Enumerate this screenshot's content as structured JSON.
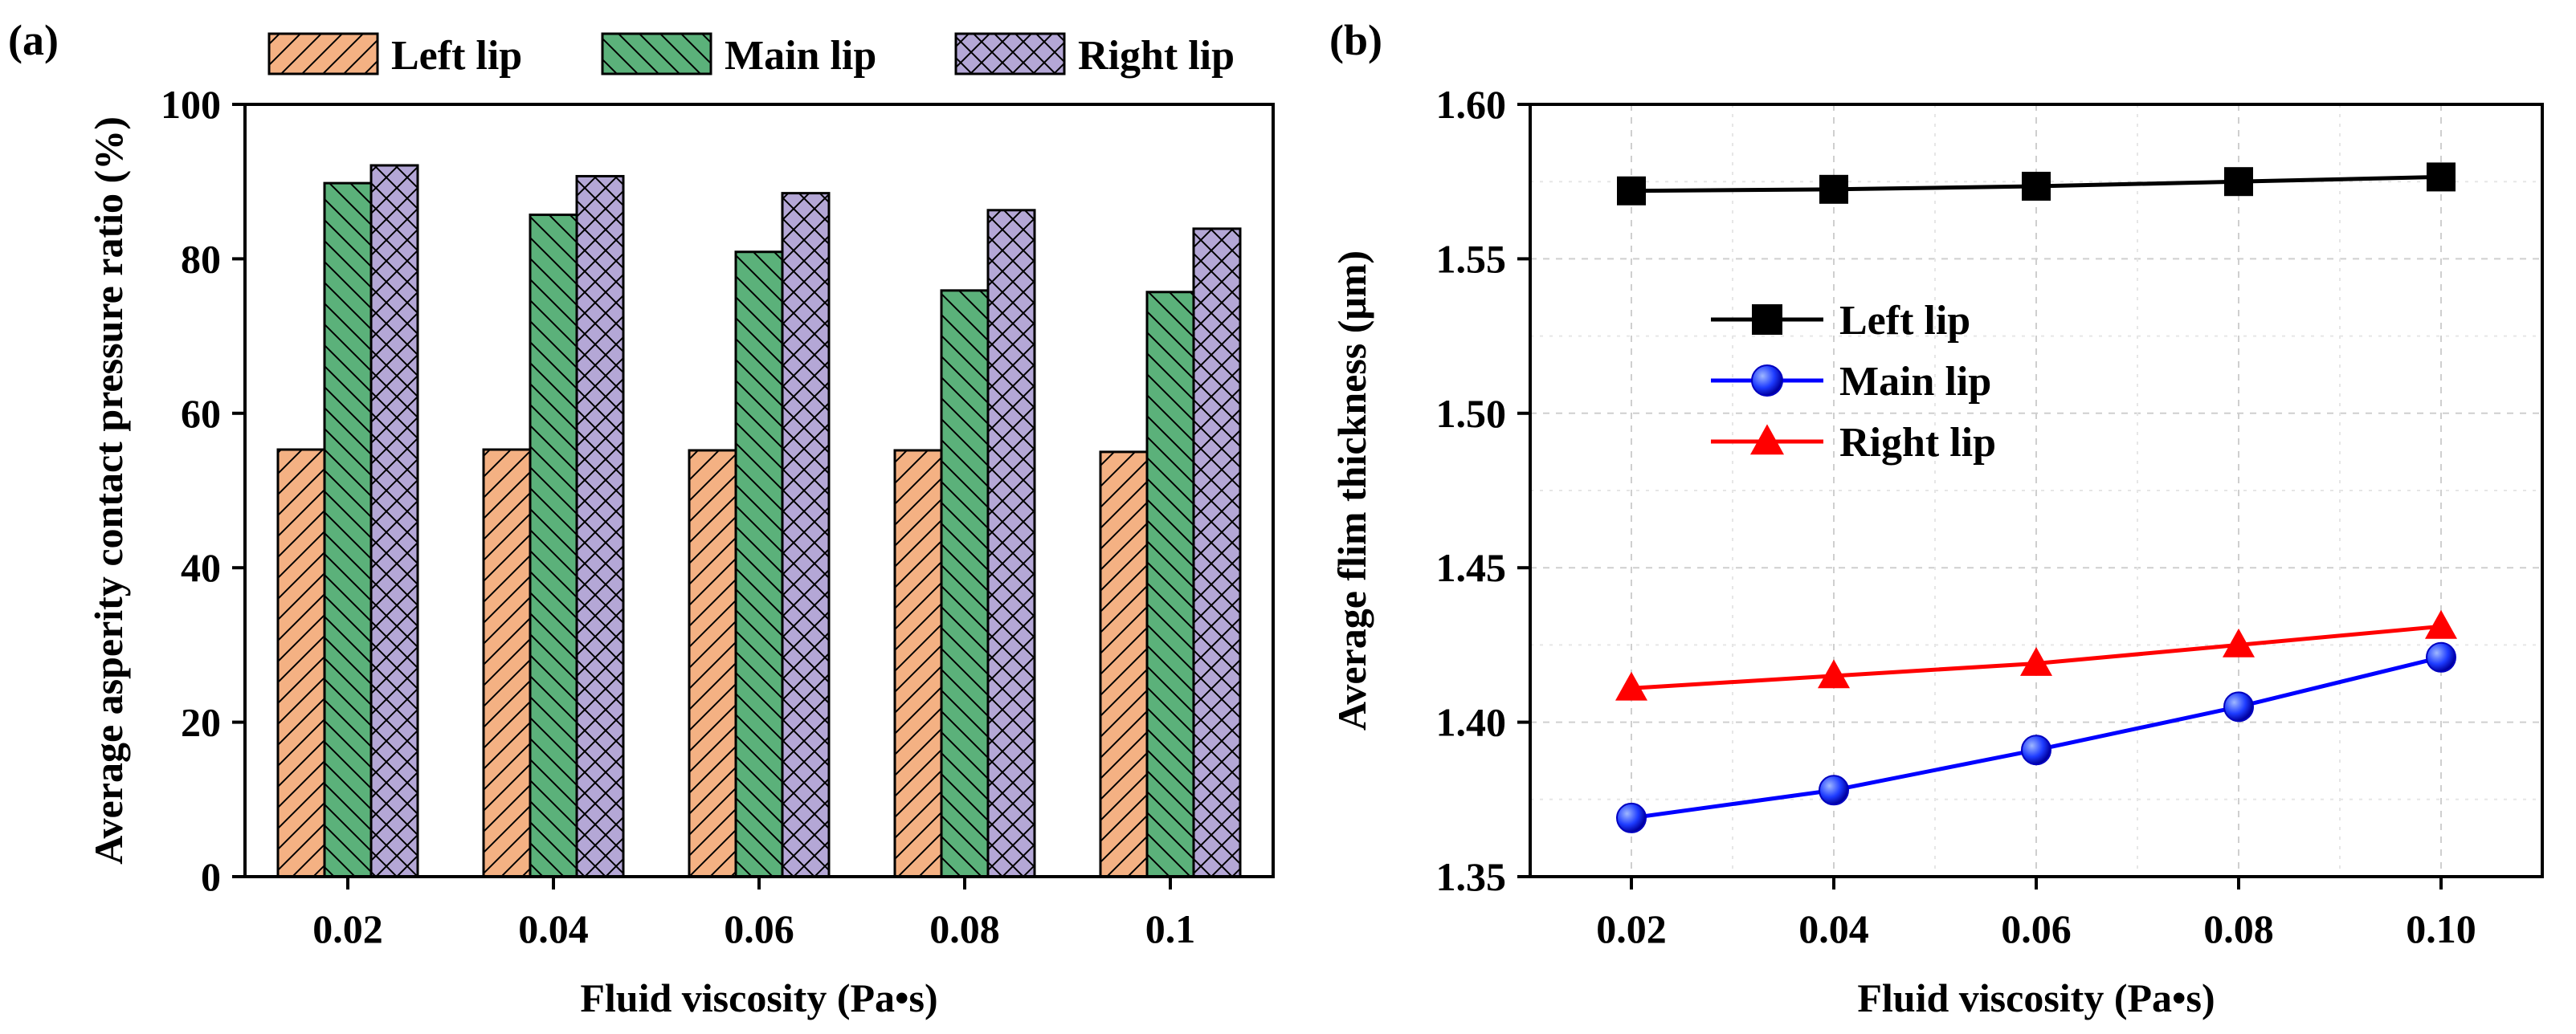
{
  "chart_data": [
    {
      "panel_label": "(a)",
      "type": "bar",
      "xlabel": "Fluid viscosity (Pa•s)",
      "ylabel": "Average asperity contact pressure ratio (%)",
      "categories": [
        "0.02",
        "0.04",
        "0.06",
        "0.08",
        "0.1"
      ],
      "ylim": [
        0,
        100
      ],
      "yticks": [
        "0",
        "20",
        "40",
        "60",
        "80",
        "100"
      ],
      "legend_position": "top",
      "series": [
        {
          "name": "Left lip",
          "color": "#F4B183",
          "pattern": "forward-diagonal",
          "values": [
            55.3,
            55.3,
            55.2,
            55.2,
            55.0
          ]
        },
        {
          "name": "Main lip",
          "color": "#5BB17A",
          "pattern": "back-diagonal",
          "values": [
            89.8,
            85.7,
            80.9,
            75.9,
            75.7
          ]
        },
        {
          "name": "Right lip",
          "color": "#B4A7D6",
          "pattern": "cross-hatch",
          "values": [
            92.1,
            90.7,
            88.5,
            86.3,
            83.9
          ]
        }
      ]
    },
    {
      "panel_label": "(b)",
      "type": "line",
      "xlabel": "Fluid viscosity (Pa•s)",
      "ylabel": "Average flim thickness (μm)",
      "x": [
        0.02,
        0.04,
        0.06,
        0.08,
        0.1
      ],
      "xticks": [
        "0.02",
        "0.04",
        "0.06",
        "0.08",
        "0.10"
      ],
      "xlim": [
        0.01,
        0.11
      ],
      "ylim": [
        1.35,
        1.6
      ],
      "yticks": [
        "1.35",
        "1.40",
        "1.45",
        "1.50",
        "1.55",
        "1.60"
      ],
      "grid": true,
      "legend_position": "upper-left-center",
      "series": [
        {
          "name": "Left lip",
          "color": "#000000",
          "marker": "square",
          "values": [
            1.572,
            1.5725,
            1.5735,
            1.575,
            1.5765
          ]
        },
        {
          "name": "Main lip",
          "color": "#0000FF",
          "marker": "circle",
          "values": [
            1.369,
            1.378,
            1.391,
            1.405,
            1.421
          ]
        },
        {
          "name": "Right lip",
          "color": "#FF0000",
          "marker": "triangle",
          "values": [
            1.411,
            1.415,
            1.419,
            1.425,
            1.431
          ]
        }
      ]
    }
  ]
}
